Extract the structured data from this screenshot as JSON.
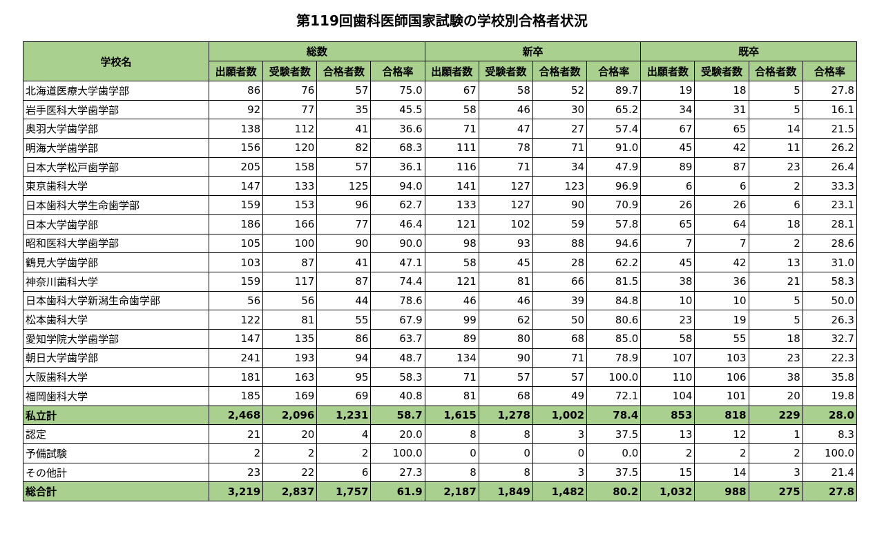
{
  "title": "第119回歯科医師国家試験の学校別合格者状況",
  "table": {
    "name_header": "学校名",
    "groups": [
      {
        "name": "総数",
        "columns": [
          "出願者数",
          "受験者数",
          "合格者数",
          "合格率"
        ]
      },
      {
        "name": "新卒",
        "columns": [
          "出願者数",
          "受験者数",
          "合格者数",
          "合格率"
        ]
      },
      {
        "name": "既卒",
        "columns": [
          "出願者数",
          "受験者数",
          "合格者数",
          "合格率"
        ]
      }
    ],
    "rows": [
      [
        "北海道医療大学歯学部",
        "86",
        "76",
        "57",
        "75.0",
        "67",
        "58",
        "52",
        "89.7",
        "19",
        "18",
        "5",
        "27.8"
      ],
      [
        "岩手医科大学歯学部",
        "92",
        "77",
        "35",
        "45.5",
        "58",
        "46",
        "30",
        "65.2",
        "34",
        "31",
        "5",
        "16.1"
      ],
      [
        "奥羽大学歯学部",
        "138",
        "112",
        "41",
        "36.6",
        "71",
        "47",
        "27",
        "57.4",
        "67",
        "65",
        "14",
        "21.5"
      ],
      [
        "明海大学歯学部",
        "156",
        "120",
        "82",
        "68.3",
        "111",
        "78",
        "71",
        "91.0",
        "45",
        "42",
        "11",
        "26.2"
      ],
      [
        "日本大学松戸歯学部",
        "205",
        "158",
        "57",
        "36.1",
        "116",
        "71",
        "34",
        "47.9",
        "89",
        "87",
        "23",
        "26.4"
      ],
      [
        "東京歯科大学",
        "147",
        "133",
        "125",
        "94.0",
        "141",
        "127",
        "123",
        "96.9",
        "6",
        "6",
        "2",
        "33.3"
      ],
      [
        "日本歯科大学生命歯学部",
        "159",
        "153",
        "96",
        "62.7",
        "133",
        "127",
        "90",
        "70.9",
        "26",
        "26",
        "6",
        "23.1"
      ],
      [
        "日本大学歯学部",
        "186",
        "166",
        "77",
        "46.4",
        "121",
        "102",
        "59",
        "57.8",
        "65",
        "64",
        "18",
        "28.1"
      ],
      [
        "昭和医科大学歯学部",
        "105",
        "100",
        "90",
        "90.0",
        "98",
        "93",
        "88",
        "94.6",
        "7",
        "7",
        "2",
        "28.6"
      ],
      [
        "鶴見大学歯学部",
        "103",
        "87",
        "41",
        "47.1",
        "58",
        "45",
        "28",
        "62.2",
        "45",
        "42",
        "13",
        "31.0"
      ],
      [
        "神奈川歯科大学",
        "159",
        "117",
        "87",
        "74.4",
        "121",
        "81",
        "66",
        "81.5",
        "38",
        "36",
        "21",
        "58.3"
      ],
      [
        "日本歯科大学新潟生命歯学部",
        "56",
        "56",
        "44",
        "78.6",
        "46",
        "46",
        "39",
        "84.8",
        "10",
        "10",
        "5",
        "50.0"
      ],
      [
        "松本歯科大学",
        "122",
        "81",
        "55",
        "67.9",
        "99",
        "62",
        "50",
        "80.6",
        "23",
        "19",
        "5",
        "26.3"
      ],
      [
        "愛知学院大学歯学部",
        "147",
        "135",
        "86",
        "63.7",
        "89",
        "80",
        "68",
        "85.0",
        "58",
        "55",
        "18",
        "32.7"
      ],
      [
        "朝日大学歯学部",
        "241",
        "193",
        "94",
        "48.7",
        "134",
        "90",
        "71",
        "78.9",
        "107",
        "103",
        "23",
        "22.3"
      ],
      [
        "大阪歯科大学",
        "181",
        "163",
        "95",
        "58.3",
        "71",
        "57",
        "57",
        "100.0",
        "110",
        "106",
        "38",
        "35.8"
      ],
      [
        "福岡歯科大学",
        "185",
        "169",
        "69",
        "40.8",
        "81",
        "68",
        "49",
        "72.1",
        "104",
        "101",
        "20",
        "19.8"
      ],
      [
        "私立計",
        "2,468",
        "2,096",
        "1,231",
        "58.7",
        "1,615",
        "1,278",
        "1,002",
        "78.4",
        "853",
        "818",
        "229",
        "28.0"
      ],
      [
        "認定",
        "21",
        "20",
        "4",
        "20.0",
        "8",
        "8",
        "3",
        "37.5",
        "13",
        "12",
        "1",
        "8.3"
      ],
      [
        "予備試験",
        "2",
        "2",
        "2",
        "100.0",
        "0",
        "0",
        "0",
        "0.0",
        "2",
        "2",
        "2",
        "100.0"
      ],
      [
        "その他計",
        "23",
        "22",
        "6",
        "27.3",
        "8",
        "8",
        "3",
        "37.5",
        "15",
        "14",
        "3",
        "21.4"
      ],
      [
        "総合計",
        "3,219",
        "2,837",
        "1,757",
        "61.9",
        "2,187",
        "1,849",
        "1,482",
        "80.2",
        "1,032",
        "988",
        "275",
        "27.8"
      ]
    ]
  }
}
